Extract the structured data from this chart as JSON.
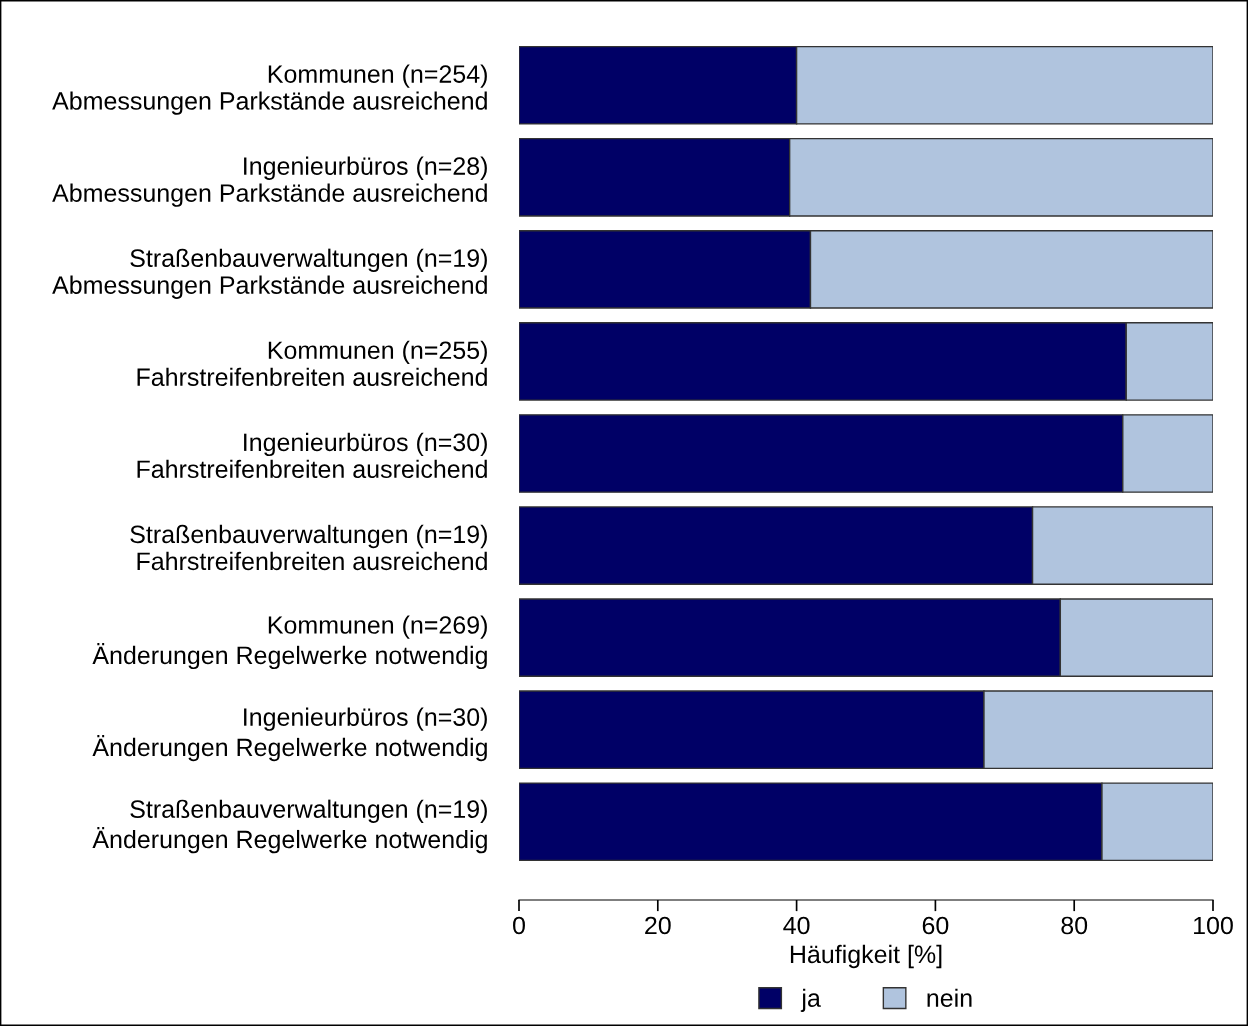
{
  "chart_data": {
    "type": "bar",
    "orientation": "horizontal",
    "stacked": true,
    "categories": [
      "Kommunen (n=254)\nAbmessungen Parkstände ausreichend",
      "Ingenieurbüros (n=28)\nAbmessungen Parkstände ausreichend",
      "Straßenbauverwaltungen (n=19)\nAbmessungen Parkstände ausreichend",
      "Kommunen (n=255)\nFahrstreifenbreiten ausreichend",
      "Ingenieurbüros (n=30)\nFahrstreifenbreiten ausreichend",
      "Straßenbauverwaltungen (n=19)\nFahrstreifenbreiten ausreichend",
      "Kommunen (n=269)\nÄnderungen Regelwerke notwendig",
      "Ingenieurbüros (n=30)\nÄnderungen Regelwerke notwendig",
      "Straßenbauverwaltungen (n=19)\nÄnderungen Regelwerke notwendig"
    ],
    "series": [
      {
        "name": "ja",
        "color": "#000066",
        "values": [
          40,
          39,
          42,
          87.5,
          87,
          74,
          78,
          67,
          84
        ]
      },
      {
        "name": "nein",
        "color": "#b0c4de",
        "values": [
          60,
          61,
          58,
          12.5,
          13,
          26,
          22,
          33,
          16
        ]
      }
    ],
    "xlabel": "Häufigkeit [%]",
    "xlim": [
      0,
      100
    ],
    "xticks": [
      0,
      20,
      40,
      60,
      80,
      100
    ],
    "legend": "bottom",
    "grid": false
  }
}
